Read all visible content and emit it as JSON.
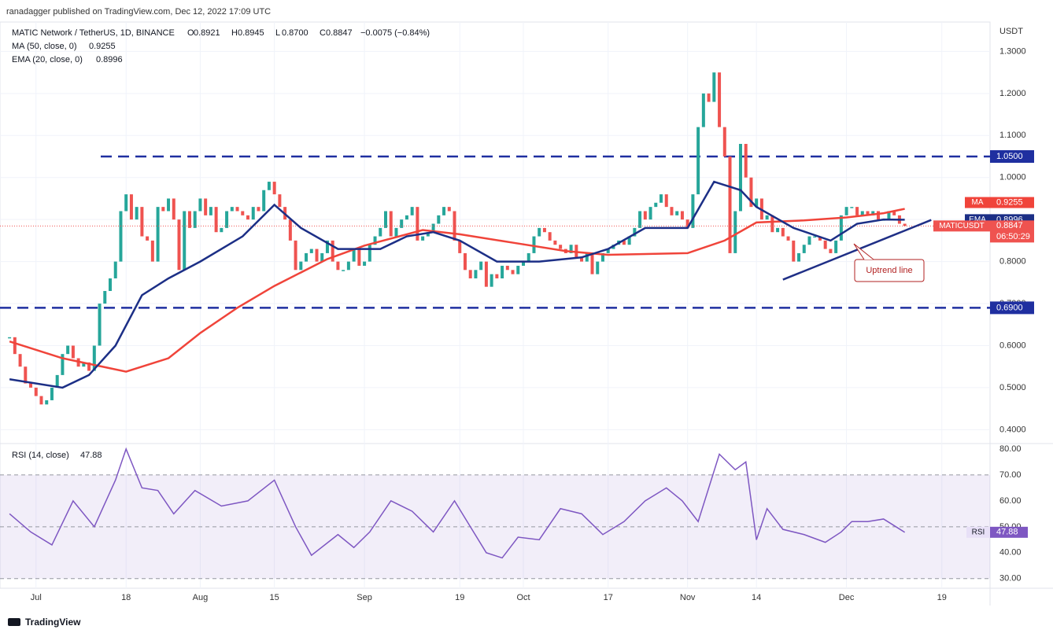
{
  "header": "ranadagger published on TradingView.com, Dec 12, 2022 17:09 UTC",
  "footer": "TradingView",
  "chart_data": [
    {
      "type": "candlestick",
      "title": "MATIC Network / TetherUS, 1D, BINANCE",
      "symbol": "MATICUSDT",
      "countdown": "06:50:29",
      "unit": "USDT",
      "ohlc_labels": [
        "O",
        "H",
        "L",
        "C"
      ],
      "open": 0.8921,
      "high": 0.8945,
      "low": {
        "value": 0.87,
        "label": "0.8700"
      },
      "change": "−0.0075 (−0.84%)",
      "up_color": "#26a69a",
      "down_color": "#ef5350",
      "closes": [
        0.62,
        0.58,
        0.55,
        0.51,
        0.5,
        0.48,
        0.46,
        0.47,
        0.5,
        0.53,
        0.58,
        0.6,
        0.57,
        0.55,
        0.56,
        0.54,
        0.6,
        0.7,
        0.73,
        0.76,
        0.8,
        0.92,
        0.96,
        0.9,
        0.93,
        0.86,
        0.85,
        0.8,
        0.93,
        0.92,
        0.95,
        0.9,
        0.78,
        0.92,
        0.88,
        0.92,
        0.95,
        0.91,
        0.93,
        0.87,
        0.88,
        0.92,
        0.93,
        0.92,
        0.91,
        0.9,
        0.93,
        0.92,
        0.97,
        0.99,
        0.96,
        0.93,
        0.9,
        0.85,
        0.78,
        0.8,
        0.82,
        0.83,
        0.8,
        0.82,
        0.85,
        0.8,
        0.78,
        0.78,
        0.8,
        0.83,
        0.79,
        0.8,
        0.84,
        0.86,
        0.88,
        0.92,
        0.86,
        0.88,
        0.9,
        0.91,
        0.93,
        0.85,
        0.86,
        0.87,
        0.89,
        0.91,
        0.93,
        0.92,
        0.85,
        0.82,
        0.78,
        0.76,
        0.78,
        0.8,
        0.74,
        0.77,
        0.76,
        0.79,
        0.78,
        0.77,
        0.79,
        0.8,
        0.82,
        0.86,
        0.88,
        0.87,
        0.85,
        0.84,
        0.83,
        0.82,
        0.84,
        0.81,
        0.8,
        0.82,
        0.77,
        0.8,
        0.82,
        0.83,
        0.84,
        0.85,
        0.84,
        0.86,
        0.88,
        0.92,
        0.9,
        0.93,
        0.94,
        0.96,
        0.93,
        0.91,
        0.92,
        0.9,
        0.88,
        0.96,
        1.12,
        1.2,
        1.18,
        1.25,
        1.12,
        1.05,
        0.82,
        0.92,
        1.08,
        1.0,
        0.93,
        0.95,
        0.9,
        0.91,
        0.87,
        0.88,
        0.86,
        0.85,
        0.8,
        0.82,
        0.84,
        0.86,
        0.86,
        0.85,
        0.83,
        0.82,
        0.85,
        0.91,
        0.93,
        0.93,
        0.91,
        0.92,
        0.91,
        0.92,
        0.9,
        0.9,
        0.92,
        0.91,
        0.89,
        0.8847
      ],
      "series": [
        {
          "name": "MA (50, close, 0)",
          "tag": "MA",
          "color": "#f0443a",
          "x": [
            0,
            10,
            22,
            30,
            36,
            43,
            50,
            60,
            67,
            78,
            85,
            95,
            105,
            113,
            128,
            135,
            141,
            150,
            158,
            165,
            169
          ],
          "values": [
            0.61,
            0.57,
            0.538,
            0.57,
            0.63,
            0.69,
            0.742,
            0.806,
            0.838,
            0.875,
            0.865,
            0.845,
            0.825,
            0.816,
            0.82,
            0.85,
            0.893,
            0.898,
            0.905,
            0.915,
            0.9255
          ]
        },
        {
          "name": "EMA (20, close, 0)",
          "tag": "EMA",
          "color": "#1c2f86",
          "x": [
            0,
            10,
            15,
            20,
            25,
            30,
            36,
            44,
            50,
            55,
            62,
            70,
            75,
            80,
            85,
            92,
            100,
            108,
            113,
            120,
            128,
            133,
            138,
            141,
            148,
            155,
            160,
            165,
            169
          ],
          "values": [
            0.52,
            0.5,
            0.53,
            0.6,
            0.72,
            0.76,
            0.8,
            0.86,
            0.935,
            0.88,
            0.83,
            0.83,
            0.86,
            0.87,
            0.85,
            0.8,
            0.8,
            0.81,
            0.83,
            0.88,
            0.88,
            0.99,
            0.97,
            0.93,
            0.88,
            0.85,
            0.89,
            0.9,
            0.8996
          ]
        }
      ],
      "levels": [
        {
          "value": 1.05,
          "label": "1.0500"
        },
        {
          "value": 0.69,
          "label": "0.6900"
        }
      ],
      "level_color": "#1f2fa0",
      "trendline": {
        "x": [
          146,
          174
        ],
        "values": [
          0.757,
          0.899
        ],
        "color": "#1f2f86"
      },
      "annotation": "Uptrend line",
      "xlim": [
        -1.8,
        185.1
      ],
      "ylim": [
        0.367,
        1.37
      ],
      "grid": true,
      "yticks": [
        {
          "value": 0.4,
          "label": "0.4000"
        },
        {
          "value": 0.5,
          "label": "0.5000"
        },
        {
          "value": 0.6,
          "label": "0.6000"
        },
        {
          "value": 0.7,
          "label": "0.7000"
        },
        {
          "value": 0.8,
          "label": "0.8000"
        },
        {
          "value": 0.9,
          "label": "0.9000"
        },
        {
          "value": 1.0,
          "label": "1.0000"
        },
        {
          "value": 1.1,
          "label": "1.1000"
        },
        {
          "value": 1.2,
          "label": "1.2000"
        },
        {
          "value": 1.3,
          "label": "1.3000"
        }
      ],
      "xticks": [
        {
          "value": 5,
          "label": "Jul"
        },
        {
          "value": 22,
          "label": "18"
        },
        {
          "value": 36,
          "label": "Aug"
        },
        {
          "value": 50,
          "label": "15"
        },
        {
          "value": 67,
          "label": "Sep"
        },
        {
          "value": 85,
          "label": "19"
        },
        {
          "value": 97,
          "label": "Oct"
        },
        {
          "value": 113,
          "label": "17"
        },
        {
          "value": 128,
          "label": "Nov"
        },
        {
          "value": 141,
          "label": "14"
        },
        {
          "value": 158,
          "label": "Dec"
        },
        {
          "value": 176,
          "label": "19"
        }
      ]
    },
    {
      "type": "line",
      "title": "RSI (14, close)",
      "series": [
        {
          "name": "RSI",
          "color": "#7e57c2",
          "x": [
            0,
            4,
            8,
            12,
            16,
            20,
            22,
            25,
            28,
            31,
            35,
            40,
            45,
            50,
            54,
            57,
            62,
            65,
            68,
            72,
            76,
            80,
            84,
            87,
            90,
            93,
            96,
            100,
            104,
            108,
            112,
            116,
            120,
            124,
            127,
            130,
            134,
            137,
            139,
            141,
            143,
            146,
            150,
            154,
            157,
            159,
            162,
            165,
            169
          ],
          "values": [
            55,
            48,
            43,
            60,
            50,
            68,
            80,
            65,
            64,
            55,
            64,
            58,
            60,
            68,
            50,
            39,
            47,
            42,
            48,
            60,
            56,
            48,
            60,
            50,
            40,
            38,
            46,
            45,
            57,
            55,
            47,
            52,
            60,
            65,
            60,
            52,
            78,
            72,
            75,
            45,
            57,
            49,
            47,
            44,
            48,
            52,
            52,
            53,
            47.88
          ]
        }
      ],
      "band": [
        30,
        70
      ],
      "band_color": "#7e57c2",
      "xlim": [
        -1.8,
        185.1
      ],
      "ylim": [
        26.3,
        82.1
      ],
      "yticks": [
        {
          "value": 30,
          "label": "30.00"
        },
        {
          "value": 40,
          "label": "40.00"
        },
        {
          "value": 50,
          "label": "50.00"
        },
        {
          "value": 60,
          "label": "60.00"
        },
        {
          "value": 70,
          "label": "70.00"
        },
        {
          "value": 80,
          "label": "80.00"
        }
      ]
    }
  ]
}
